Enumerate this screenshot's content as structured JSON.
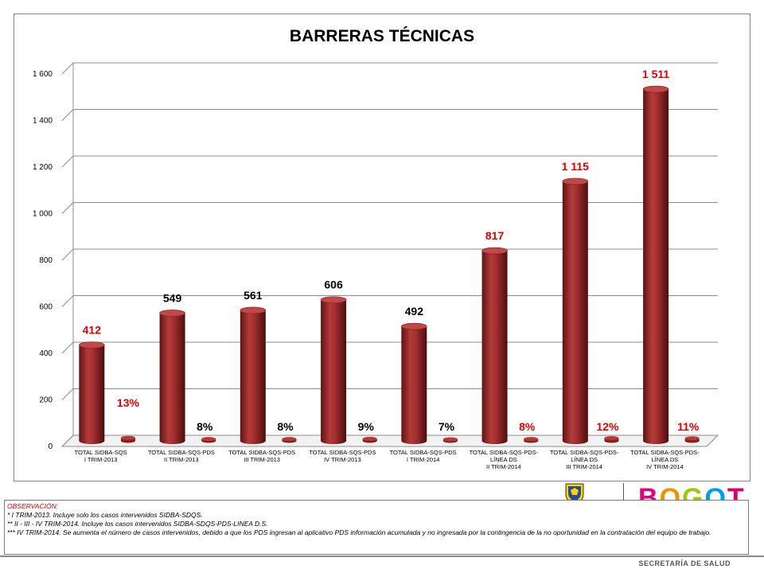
{
  "chart_data": {
    "type": "bar",
    "title": "BARRERAS TÉCNICAS",
    "ylim": [
      0,
      1600
    ],
    "yticks": [
      "0",
      "200",
      "400",
      "600",
      "800",
      "1 000",
      "1 200",
      "1 400",
      "1 600"
    ],
    "ytick_values": [
      0,
      200,
      400,
      600,
      800,
      1000,
      1200,
      1400,
      1600
    ],
    "grid": true,
    "categories": [
      [
        "TOTAL SIDBA-SQS",
        "I TRIM-2013"
      ],
      [
        "TOTAL SIDBA-SQS-PDS",
        "II TRIM-2013"
      ],
      [
        "TOTAL SIDBA-SQS-PDS",
        "III TRIM-2013"
      ],
      [
        "TOTAL SIDBA-SQS-PDS",
        "IV TRIM-2013"
      ],
      [
        "TOTAL SIDBA-SQS-PDS",
        "I TRIM-2014"
      ],
      [
        "TOTAL SIDBA-SQS-PDS-",
        "LÍNEA DS",
        "II TRIM-2014"
      ],
      [
        "TOTAL SIDBA-SQS-PDS-",
        "LÍNEA DS",
        "III TRIM-2014"
      ],
      [
        "TOTAL SIDBA-SQS-PDS-",
        "LÍNEA DS",
        "IV TRIM-2014"
      ]
    ],
    "series": [
      {
        "values": [
          412,
          549,
          561,
          606,
          492,
          817,
          1115,
          1511
        ],
        "labels": [
          "412",
          "549",
          "561",
          "606",
          "492",
          "817",
          "1 115",
          "1 511"
        ],
        "label_colors": [
          "#e00000",
          "#000000",
          "#000000",
          "#000000",
          "#000000",
          "#e00000",
          "#e00000",
          "#e00000"
        ]
      },
      {
        "values": [
          13,
          8,
          8,
          9,
          7,
          8,
          12,
          11
        ],
        "labels": [
          "13%",
          "8%",
          "8%",
          "9%",
          "7%",
          "8%",
          "12%",
          "11%"
        ],
        "label_colors": [
          "#e00000",
          "#000000",
          "#000000",
          "#000000",
          "#000000",
          "#e00000",
          "#e00000",
          "#e00000"
        ]
      }
    ],
    "bar_color": "#9e2a2a"
  },
  "logo": {
    "text": "BOGOTÁ",
    "letter_colors": [
      "#e3007d",
      "#f39200",
      "#a3c510",
      "#009fe3",
      "#d80073",
      "#e30613"
    ]
  },
  "observacion": {
    "title": "OBSERVACIÓN:",
    "lines": [
      "* I TRIM-2013. Incluye solo los casos intervenidos SIDBA-SDQS.",
      "** II - III - IV TRIM-2014. Incluye los casos intervenidos SIDBA-SDQS-PDS-LINEA D.S.",
      "*** IV TRIM-2014. Se aumenta el número de casos intervenidos, debido a que los PDS ingresan al aplicativo PDS información acumulada y no ingresada por la contingencia de la no oportunidad en la contratación del equipo de trabajo."
    ]
  },
  "footer": {
    "text": "SECRETARÍA DE SALUD"
  }
}
